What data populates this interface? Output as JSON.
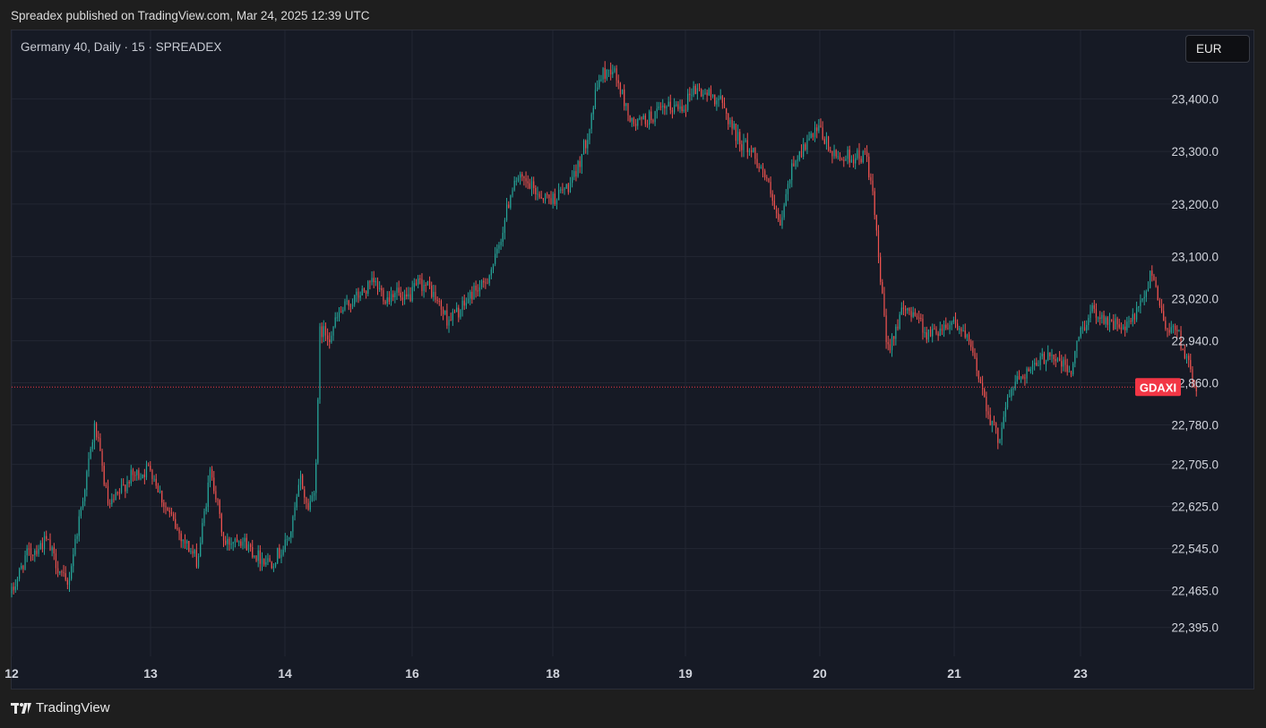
{
  "header": {
    "published_text": "Spreadex published on TradingView.com, Mar 24, 2025 12:39 UTC"
  },
  "legend": {
    "text": "Germany 40, Daily · 15 · SPREADEX"
  },
  "currency_button": {
    "label": "EUR"
  },
  "footer": {
    "brand": "TradingView"
  },
  "colors": {
    "background": "#161a25",
    "up": "#26a69a",
    "down": "#ef5350",
    "grid": "#232733",
    "price_tag": "#f23645"
  },
  "chart_data": {
    "type": "candlestick",
    "title": "Germany 40, Daily · 15 · SPREADEX",
    "ylim": [
      22340,
      23530
    ],
    "y_ticks": [
      {
        "value": 23400,
        "label": "23,400.0"
      },
      {
        "value": 23300,
        "label": "23,300.0"
      },
      {
        "value": 23200,
        "label": "23,200.0"
      },
      {
        "value": 23100,
        "label": "23,100.0"
      },
      {
        "value": 23020,
        "label": "23,020.0"
      },
      {
        "value": 22940,
        "label": "22,940.0"
      },
      {
        "value": 22860,
        "label": "22,860.0"
      },
      {
        "value": 22780,
        "label": "22,780.0"
      },
      {
        "value": 22705,
        "label": "22,705.0"
      },
      {
        "value": 22625,
        "label": "22,625.0"
      },
      {
        "value": 22545,
        "label": "22,545.0"
      },
      {
        "value": 22465,
        "label": "22,465.0"
      },
      {
        "value": 22395,
        "label": "22,395.0"
      }
    ],
    "x_ticks": [
      "12",
      "13",
      "14",
      "16",
      "18",
      "19",
      "20",
      "21",
      "23"
    ],
    "current_price": {
      "label": "GDAXI",
      "value": 22852
    },
    "path": [
      [
        12.0,
        22460
      ],
      [
        12.1,
        22530
      ],
      [
        12.25,
        22560
      ],
      [
        12.4,
        22470
      ],
      [
        12.55,
        22700
      ],
      [
        12.6,
        22780
      ],
      [
        12.7,
        22620
      ],
      [
        12.85,
        22680
      ],
      [
        12.95,
        22690
      ],
      [
        13.0,
        22700
      ],
      [
        13.1,
        22630
      ],
      [
        13.2,
        22580
      ],
      [
        13.35,
        22520
      ],
      [
        13.45,
        22700
      ],
      [
        13.55,
        22550
      ],
      [
        13.65,
        22570
      ],
      [
        13.8,
        22530
      ],
      [
        13.9,
        22520
      ],
      [
        14.0,
        22550
      ],
      [
        14.1,
        22580
      ],
      [
        14.25,
        22680
      ],
      [
        14.35,
        22620
      ],
      [
        14.45,
        22650
      ],
      [
        14.5,
        22730
      ],
      [
        14.55,
        22960
      ],
      [
        14.7,
        22950
      ],
      [
        14.85,
        22990
      ],
      [
        15.0,
        23010
      ],
      [
        15.2,
        23030
      ],
      [
        15.4,
        23050
      ],
      [
        15.6,
        23020
      ],
      [
        15.75,
        23040
      ],
      [
        15.85,
        23010
      ],
      [
        16.0,
        23030
      ],
      [
        16.1,
        23050
      ],
      [
        16.25,
        23040
      ],
      [
        16.5,
        22980
      ],
      [
        16.7,
        23000
      ],
      [
        16.9,
        23040
      ],
      [
        17.0,
        23040
      ],
      [
        17.2,
        23100
      ],
      [
        17.35,
        23190
      ],
      [
        17.45,
        23250
      ],
      [
        17.6,
        23240
      ],
      [
        17.85,
        23215
      ],
      [
        18.0,
        23210
      ],
      [
        18.15,
        23240
      ],
      [
        18.25,
        23320
      ],
      [
        18.35,
        23440
      ],
      [
        18.45,
        23460
      ],
      [
        18.6,
        23350
      ],
      [
        18.7,
        23360
      ],
      [
        18.85,
        23380
      ],
      [
        19.0,
        23390
      ],
      [
        19.05,
        23420
      ],
      [
        19.25,
        23400
      ],
      [
        19.4,
        23320
      ],
      [
        19.5,
        23300
      ],
      [
        19.6,
        23250
      ],
      [
        19.7,
        23150
      ],
      [
        19.8,
        23280
      ],
      [
        19.95,
        23330
      ],
      [
        20.0,
        23340
      ],
      [
        20.1,
        23290
      ],
      [
        20.25,
        23290
      ],
      [
        20.35,
        23290
      ],
      [
        20.4,
        23200
      ],
      [
        20.5,
        22920
      ],
      [
        20.6,
        22990
      ],
      [
        20.7,
        23000
      ],
      [
        20.8,
        22950
      ],
      [
        21.0,
        22980
      ],
      [
        21.1,
        22960
      ],
      [
        21.25,
        22930
      ],
      [
        21.4,
        22870
      ],
      [
        21.55,
        22800
      ],
      [
        21.7,
        22750
      ],
      [
        21.8,
        22810
      ],
      [
        21.95,
        22860
      ],
      [
        22.1,
        22880
      ],
      [
        22.3,
        22890
      ],
      [
        22.5,
        22920
      ],
      [
        22.65,
        22900
      ],
      [
        22.85,
        22880
      ],
      [
        23.0,
        22960
      ],
      [
        23.1,
        23000
      ],
      [
        23.2,
        22980
      ],
      [
        23.35,
        22960
      ],
      [
        23.5,
        23020
      ],
      [
        23.55,
        23080
      ],
      [
        23.65,
        22970
      ],
      [
        23.75,
        22960
      ],
      [
        23.85,
        22880
      ],
      [
        23.9,
        22852
      ]
    ]
  }
}
